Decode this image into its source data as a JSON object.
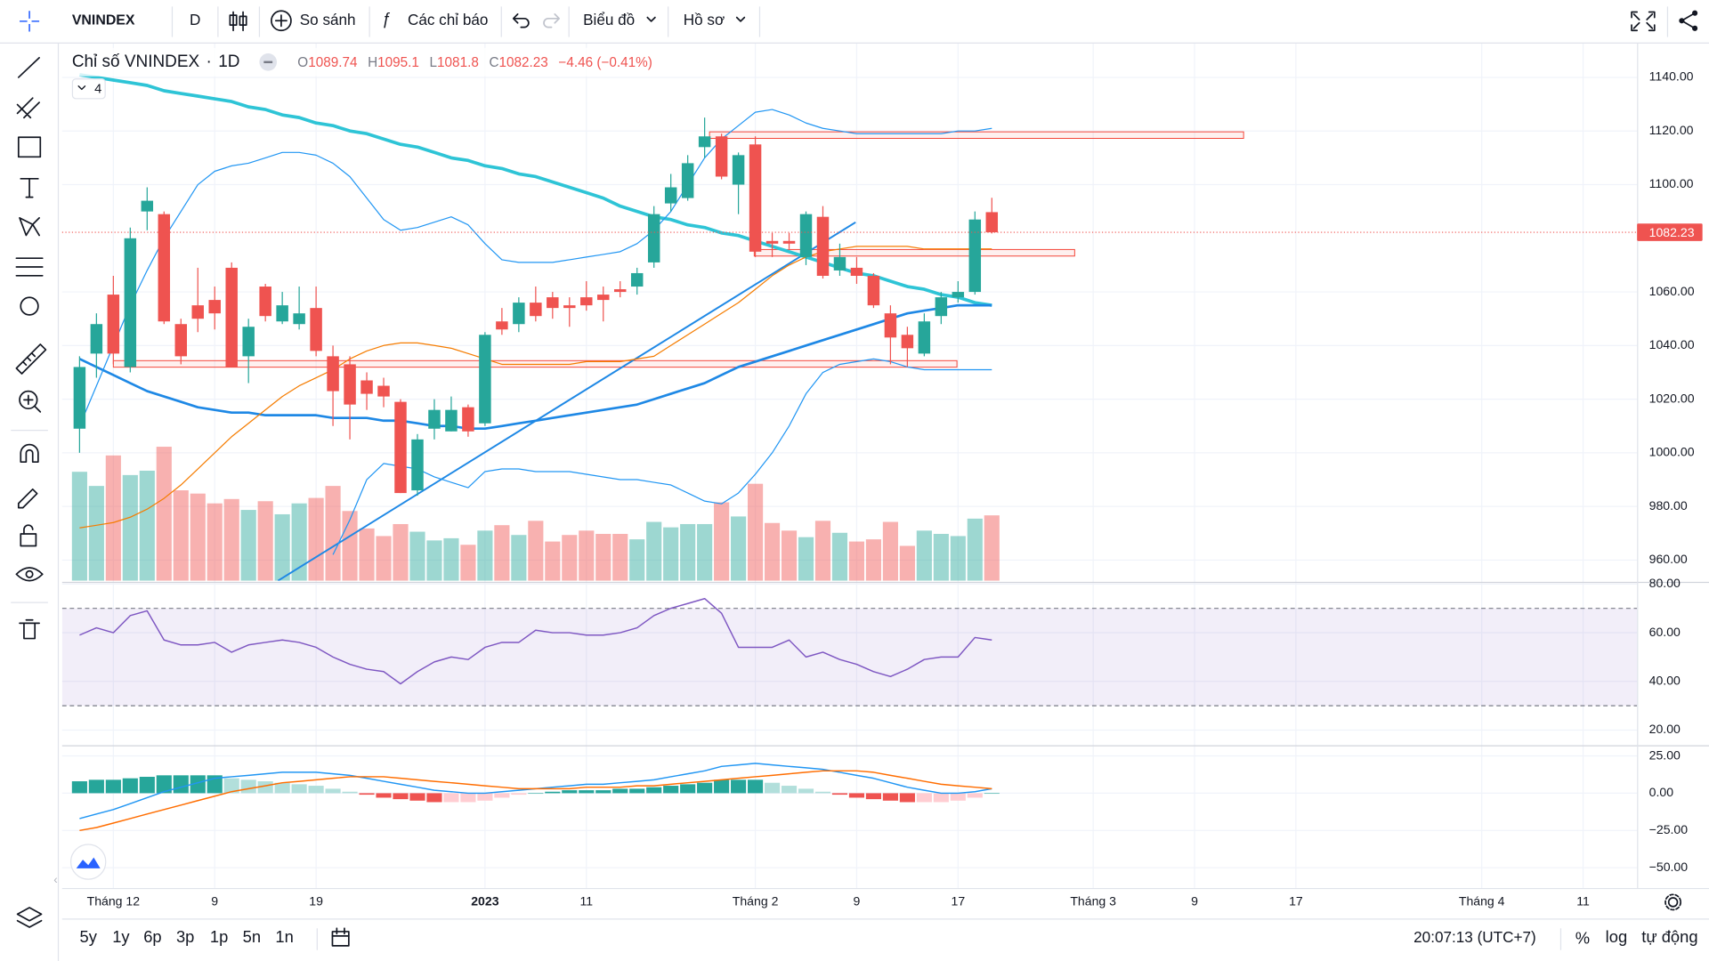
{
  "toolbar": {
    "symbol": "VNINDEX",
    "interval": "D",
    "compare": "So sánh",
    "indicators": "Các chỉ báo",
    "chart_menu": "Biểu đồ",
    "profile_menu": "Hồ sơ"
  },
  "legend": {
    "name": "Chỉ số VNINDEX",
    "interval": "1D",
    "open_label": "O",
    "high_label": "H",
    "low_label": "L",
    "close_label": "C",
    "change": "−4.46 (−0.41%)",
    "indicator_count": "4"
  },
  "bottom_bar": {
    "ranges": [
      "5y",
      "1y",
      "6p",
      "3p",
      "1p",
      "5n",
      "1n"
    ],
    "clock": "20:07:13 (UTC+7)",
    "percent": "%",
    "log": "log",
    "auto": "tự động"
  },
  "chart_data": {
    "type": "candlestick",
    "colors": {
      "up": "#26a69a",
      "down": "#ef5350",
      "up_light": "#b2dfdb",
      "down_light": "#ffcdd2"
    },
    "open": [
      1009,
      1037,
      1059,
      1032,
      1090,
      1089,
      1048,
      1055,
      1057,
      1069,
      1036,
      1062,
      1049,
      1048,
      1054,
      1036,
      1033,
      1027,
      1025,
      1019,
      986,
      1009,
      1008,
      1017,
      1011,
      1049,
      1048,
      1056,
      1058,
      1055,
      1058,
      1059,
      1061,
      1062,
      1071,
      1093,
      1095,
      1114,
      1118,
      1100,
      1115,
      1079,
      1079,
      1073,
      1088,
      1068,
      1069,
      1066,
      1052,
      1044,
      1037,
      1051,
      1058,
      1060,
      1089.74
    ],
    "high": [
      1036,
      1052,
      1066,
      1084,
      1099,
      1090,
      1050,
      1069,
      1062,
      1071,
      1050,
      1063,
      1060,
      1062,
      1062,
      1040,
      1036,
      1030,
      1028,
      1020,
      1007,
      1020,
      1021,
      1018,
      1045,
      1054,
      1058,
      1062,
      1060,
      1058,
      1064,
      1062,
      1064,
      1069,
      1092,
      1104,
      1111,
      1125,
      1119,
      1112,
      1118,
      1082,
      1082,
      1090,
      1092,
      1078,
      1073,
      1067,
      1055,
      1047,
      1052,
      1060,
      1064,
      1090,
      1095.1
    ],
    "low": [
      1000,
      1028,
      1033,
      1030,
      1083,
      1048,
      1033,
      1045,
      1046,
      1032,
      1026,
      1049,
      1048,
      1046,
      1036,
      1010,
      1005,
      1016,
      1017,
      985,
      984,
      1005,
      1008,
      1006,
      1010,
      1044,
      1045,
      1049,
      1050,
      1047,
      1053,
      1049,
      1058,
      1059,
      1069,
      1090,
      1094,
      1110,
      1102,
      1089,
      1073,
      1073,
      1076,
      1070,
      1065,
      1066,
      1063,
      1054,
      1033,
      1032,
      1036,
      1048,
      1056,
      1059,
      1081.8
    ],
    "close": [
      1032,
      1048,
      1037,
      1080,
      1094,
      1049,
      1036,
      1050,
      1052,
      1032,
      1047,
      1051,
      1055,
      1052,
      1038,
      1023,
      1018,
      1022,
      1021,
      985,
      1005,
      1016,
      1016,
      1008,
      1044,
      1046,
      1056,
      1051,
      1054,
      1054,
      1055,
      1057,
      1060,
      1067,
      1089,
      1099,
      1108,
      1118,
      1103,
      1111,
      1075,
      1078,
      1078,
      1089,
      1066,
      1073,
      1066,
      1055,
      1043,
      1039,
      1049,
      1058,
      1060,
      1087,
      1082.23
    ],
    "volume": [
      100,
      87,
      115,
      97,
      101,
      123,
      83,
      80,
      71,
      75,
      65,
      73,
      61,
      71,
      76,
      87,
      64,
      48,
      41,
      52,
      45,
      37,
      39,
      33,
      46,
      51,
      42,
      55,
      36,
      42,
      46,
      43,
      43,
      38,
      54,
      49,
      52,
      52,
      72,
      59,
      89,
      53,
      46,
      40,
      55,
      44,
      36,
      38,
      54,
      32,
      46,
      43,
      41,
      57,
      60
    ],
    "vlim": [
      0,
      330
    ],
    "overlays": [
      {
        "color": "#2ec4d6",
        "width": 3,
        "values": [
          1141,
          1140,
          1139,
          1138,
          1137,
          1135,
          1134,
          1133,
          1132,
          1131,
          1129,
          1128,
          1126,
          1125,
          1123,
          1122,
          1120,
          1119,
          1117,
          1115,
          1114,
          1112,
          1110,
          1109,
          1107,
          1106,
          1104,
          1103,
          1101,
          1099,
          1097,
          1095,
          1092,
          1090,
          1088,
          1087,
          1085,
          1084,
          1082,
          1081,
          1079,
          1077,
          1075,
          1073,
          1071,
          1069,
          1067,
          1066,
          1064,
          1062,
          1061,
          1059,
          1058,
          1056,
          1055
        ]
      },
      {
        "color": "#1e88e5",
        "width": 2.2,
        "values": [
          1035,
          1032,
          1029,
          1026,
          1023,
          1021,
          1019,
          1017,
          1016,
          1015,
          1015,
          1014,
          1014,
          1014,
          1014,
          1013,
          1013,
          1013,
          1012,
          1012,
          1011,
          1010,
          1010,
          1009,
          1009,
          1010,
          1011,
          1012,
          1013,
          1014,
          1015,
          1016,
          1017,
          1018,
          1020,
          1022,
          1024,
          1026,
          1029,
          1032,
          1034,
          1036,
          1038,
          1040,
          1042,
          1044,
          1046,
          1048,
          1050,
          1052,
          1053,
          1054,
          1055,
          1055,
          1055
        ]
      },
      {
        "color": "#f57c00",
        "width": 1,
        "values": [
          972,
          973,
          974,
          976,
          979,
          983,
          988,
          994,
          1000,
          1006,
          1011,
          1016,
          1021,
          1025,
          1028,
          1031,
          1035,
          1038,
          1040,
          1041,
          1041,
          1040,
          1039,
          1037,
          1035,
          1033,
          1033,
          1033,
          1033,
          1033,
          1034,
          1034,
          1034,
          1035,
          1036,
          1040,
          1044,
          1048,
          1052,
          1056,
          1061,
          1066,
          1070,
          1073,
          1075,
          1076,
          1077,
          1077,
          1077,
          1077,
          1076,
          1076,
          1076,
          1076,
          1076
        ]
      },
      {
        "color": "#2196f3",
        "width": 1,
        "values": [
          1010,
          1025,
          1040,
          1055,
          1068,
          1080,
          1090,
          1100,
          1105,
          1107,
          1108,
          1110,
          1112,
          1112,
          1111,
          1108,
          1103,
          1095,
          1087,
          1083,
          1084,
          1086,
          1088,
          1085,
          1078,
          1072,
          1071,
          1071,
          1071,
          1072,
          1073,
          1074,
          1075,
          1078,
          1083,
          1090,
          1100,
          1110,
          1117,
          1122,
          1127,
          1128,
          1126,
          1123,
          1121,
          1120,
          1119,
          1119,
          1119,
          1119,
          1119,
          1119,
          1120,
          1120,
          1121
        ]
      },
      {
        "color": "#2196f3",
        "width": 1,
        "values": [
          null,
          null,
          null,
          null,
          null,
          null,
          null,
          null,
          null,
          null,
          null,
          null,
          null,
          null,
          null,
          962,
          975,
          990,
          996,
          995,
          994,
          991,
          989,
          987,
          993,
          994,
          994,
          993,
          993,
          993,
          992,
          991,
          990,
          990,
          989,
          988,
          985,
          982,
          981,
          985,
          992,
          1000,
          1010,
          1022,
          1030,
          1033,
          1034,
          1035,
          1034,
          1032,
          1031,
          1031,
          1031,
          1031,
          1031
        ]
      }
    ],
    "ylim": [
      952.3,
      1152.6
    ],
    "yticks": [
      {
        "value": 1140,
        "label": "1140.00"
      },
      {
        "value": 1120,
        "label": "1120.00"
      },
      {
        "value": 1100,
        "label": "1100.00"
      },
      {
        "value": 1060,
        "label": "1060.00"
      },
      {
        "value": 1040,
        "label": "1040.00"
      },
      {
        "value": 1020,
        "label": "1020.00"
      },
      {
        "value": 1000,
        "label": "1000.00"
      },
      {
        "value": 980,
        "label": "980.00"
      },
      {
        "value": 960,
        "label": "960.00"
      }
    ],
    "xticks": [
      {
        "value": 2,
        "label": "Tháng 12"
      },
      {
        "value": 8,
        "label": "9"
      },
      {
        "value": 14,
        "label": "19"
      },
      {
        "value": 24,
        "label": "2023"
      },
      {
        "value": 30,
        "label": "11"
      },
      {
        "value": 40,
        "label": "Tháng 2"
      },
      {
        "value": 46,
        "label": "9"
      },
      {
        "value": 52,
        "label": "17"
      },
      {
        "value": 60,
        "label": "Tháng 3"
      },
      {
        "value": 66,
        "label": "9"
      },
      {
        "value": 72,
        "label": "17"
      },
      {
        "value": 83,
        "label": "Tháng 4"
      },
      {
        "value": 89,
        "label": "11"
      }
    ],
    "grid": true,
    "rsi": {
      "color": "#7e57c2",
      "values": [
        59,
        62,
        60,
        67,
        69,
        57,
        55,
        55,
        56,
        52,
        55,
        56,
        57,
        56,
        54,
        50,
        47,
        45,
        44,
        39,
        44,
        48,
        50,
        49,
        54,
        56,
        56,
        61,
        60,
        60,
        59,
        59,
        60,
        62,
        67,
        70,
        72,
        74,
        68,
        54,
        54,
        54,
        57,
        50,
        52,
        49,
        47,
        44,
        42,
        45,
        49,
        50,
        50,
        58,
        57
      ],
      "bands": [
        70,
        30
      ],
      "ylim": [
        14.2,
        80
      ],
      "yticks": [
        {
          "value": 80,
          "label": "80.00"
        },
        {
          "value": 60,
          "label": "60.00"
        },
        {
          "value": 40,
          "label": "40.00"
        },
        {
          "value": 20,
          "label": "20.00"
        }
      ]
    },
    "macd": {
      "macd_color": "#2196f3",
      "signal_color": "#ff6d00",
      "macd": [
        -17,
        -14,
        -11,
        -7,
        -3,
        1,
        4,
        7,
        10,
        11,
        12,
        13,
        14,
        14,
        14,
        13,
        12,
        10,
        8,
        6,
        4,
        2,
        1,
        0,
        0,
        1,
        2,
        3,
        4,
        5,
        6,
        6,
        7,
        8,
        9,
        11,
        13,
        15,
        18,
        19,
        20,
        19,
        18,
        17,
        16,
        14,
        12,
        10,
        7,
        4,
        2,
        0,
        0,
        1,
        3
      ],
      "signal": [
        -25,
        -23,
        -20,
        -17,
        -14,
        -11,
        -8,
        -5,
        -2,
        1,
        3,
        5,
        7,
        8,
        9,
        10,
        11,
        11,
        11,
        10,
        9,
        8,
        7,
        6,
        5,
        4,
        3,
        3,
        3,
        3,
        4,
        4,
        4,
        5,
        5,
        6,
        7,
        8,
        9,
        10,
        11,
        12,
        13,
        14,
        15,
        15,
        15,
        14,
        12,
        10,
        8,
        6,
        5,
        4,
        3
      ],
      "histogram": [
        8,
        9,
        9,
        10,
        11,
        12,
        12,
        12,
        12,
        10,
        9,
        8,
        7,
        6,
        5,
        3,
        1,
        -1,
        -3,
        -4,
        -5,
        -6,
        -6,
        -6,
        -5,
        -3,
        -1,
        0,
        1,
        2,
        2,
        2,
        3,
        3,
        4,
        5,
        6,
        7,
        9,
        9,
        9,
        7,
        5,
        3,
        1,
        -1,
        -3,
        -4,
        -5,
        -6,
        -6,
        -6,
        -5,
        -3,
        0
      ],
      "ylim": [
        -63.6,
        30.7
      ],
      "yticks": [
        {
          "value": 25,
          "label": "25.00"
        },
        {
          "value": 0,
          "label": "0.00"
        },
        {
          "value": -25,
          "label": "−25.00"
        },
        {
          "value": -50,
          "label": "−50.00"
        }
      ]
    }
  }
}
